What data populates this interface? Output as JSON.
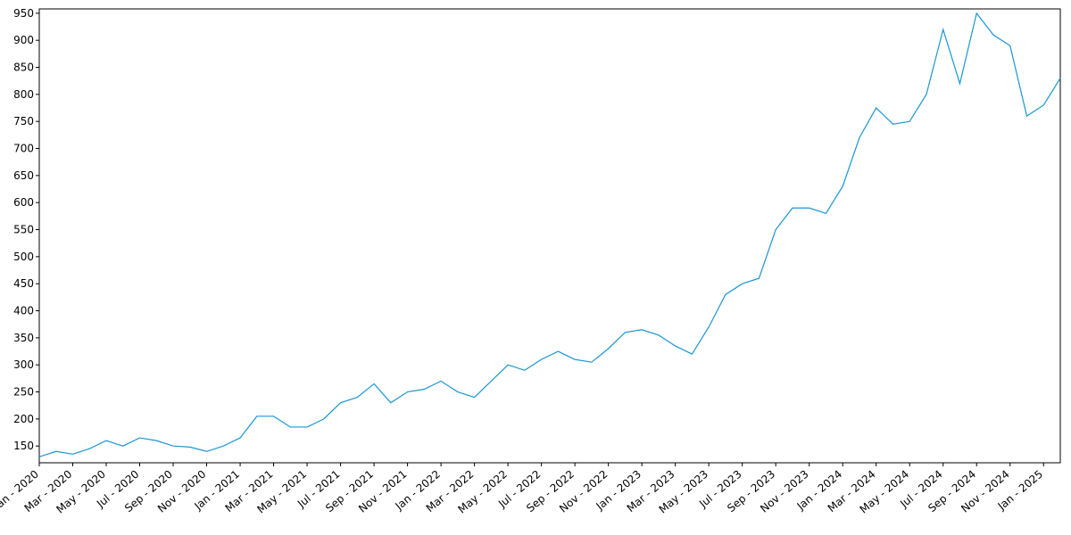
{
  "chart_data": {
    "type": "line",
    "x": [
      "2020-01",
      "2020-02",
      "2020-03",
      "2020-04",
      "2020-05",
      "2020-06",
      "2020-07",
      "2020-08",
      "2020-09",
      "2020-10",
      "2020-11",
      "2020-12",
      "2021-01",
      "2021-02",
      "2021-03",
      "2021-04",
      "2021-05",
      "2021-06",
      "2021-07",
      "2021-08",
      "2021-09",
      "2021-10",
      "2021-11",
      "2021-12",
      "2022-01",
      "2022-02",
      "2022-03",
      "2022-04",
      "2022-05",
      "2022-06",
      "2022-07",
      "2022-08",
      "2022-09",
      "2022-10",
      "2022-11",
      "2022-12",
      "2023-01",
      "2023-02",
      "2023-03",
      "2023-04",
      "2023-05",
      "2023-06",
      "2023-07",
      "2023-08",
      "2023-09",
      "2023-10",
      "2023-11",
      "2023-12",
      "2024-01",
      "2024-02",
      "2024-03",
      "2024-04",
      "2024-05",
      "2024-06",
      "2024-07",
      "2024-08",
      "2024-09",
      "2024-10",
      "2024-11",
      "2024-12",
      "2025-01",
      "2025-02"
    ],
    "series": [
      {
        "color": "#1a96d4",
        "values": [
          130,
          140,
          135,
          145,
          160,
          150,
          165,
          160,
          150,
          148,
          140,
          150,
          165,
          205,
          205,
          185,
          185,
          200,
          230,
          240,
          265,
          230,
          250,
          255,
          270,
          250,
          240,
          270,
          300,
          290,
          310,
          325,
          310,
          305,
          330,
          360,
          365,
          355,
          335,
          320,
          370,
          430,
          450,
          460,
          550,
          590,
          590,
          580,
          630,
          720,
          775,
          745,
          750,
          800,
          920,
          820,
          950,
          910,
          890,
          760,
          780,
          830
        ]
      }
    ],
    "xlim": [
      "2020-01",
      "2025-02"
    ],
    "xticks": [
      {
        "value": "2020-01",
        "label": "Jan - 2020"
      },
      {
        "value": "2020-03",
        "label": "Mar - 2020"
      },
      {
        "value": "2020-05",
        "label": "May - 2020"
      },
      {
        "value": "2020-07",
        "label": "Jul - 2020"
      },
      {
        "value": "2020-09",
        "label": "Sep - 2020"
      },
      {
        "value": "2020-11",
        "label": "Nov - 2020"
      },
      {
        "value": "2021-01",
        "label": "Jan - 2021"
      },
      {
        "value": "2021-03",
        "label": "Mar - 2021"
      },
      {
        "value": "2021-05",
        "label": "May - 2021"
      },
      {
        "value": "2021-07",
        "label": "Jul - 2021"
      },
      {
        "value": "2021-09",
        "label": "Sep - 2021"
      },
      {
        "value": "2021-11",
        "label": "Nov - 2021"
      },
      {
        "value": "2022-01",
        "label": "Jan - 2022"
      },
      {
        "value": "2022-03",
        "label": "Mar - 2022"
      },
      {
        "value": "2022-05",
        "label": "May - 2022"
      },
      {
        "value": "2022-07",
        "label": "Jul - 2022"
      },
      {
        "value": "2022-09",
        "label": "Sep - 2022"
      },
      {
        "value": "2022-11",
        "label": "Nov - 2022"
      },
      {
        "value": "2023-01",
        "label": "Jan - 2023"
      },
      {
        "value": "2023-03",
        "label": "Mar - 2023"
      },
      {
        "value": "2023-05",
        "label": "May - 2023"
      },
      {
        "value": "2023-07",
        "label": "Jul - 2023"
      },
      {
        "value": "2023-09",
        "label": "Sep - 2023"
      },
      {
        "value": "2023-11",
        "label": "Nov - 2023"
      },
      {
        "value": "2024-01",
        "label": "Jan - 2024"
      },
      {
        "value": "2024-03",
        "label": "Mar - 2024"
      },
      {
        "value": "2024-05",
        "label": "May - 2024"
      },
      {
        "value": "2024-07",
        "label": "Jul - 2024"
      },
      {
        "value": "2024-09",
        "label": "Sep - 2024"
      },
      {
        "value": "2024-11",
        "label": "Nov - 2024"
      },
      {
        "value": "2025-01",
        "label": "Jan - 2025"
      }
    ],
    "ylim": [
      119,
      958
    ],
    "yticks": [
      150,
      200,
      250,
      300,
      350,
      400,
      450,
      500,
      550,
      600,
      650,
      700,
      750,
      800,
      850,
      900,
      950
    ],
    "grid": false
  }
}
